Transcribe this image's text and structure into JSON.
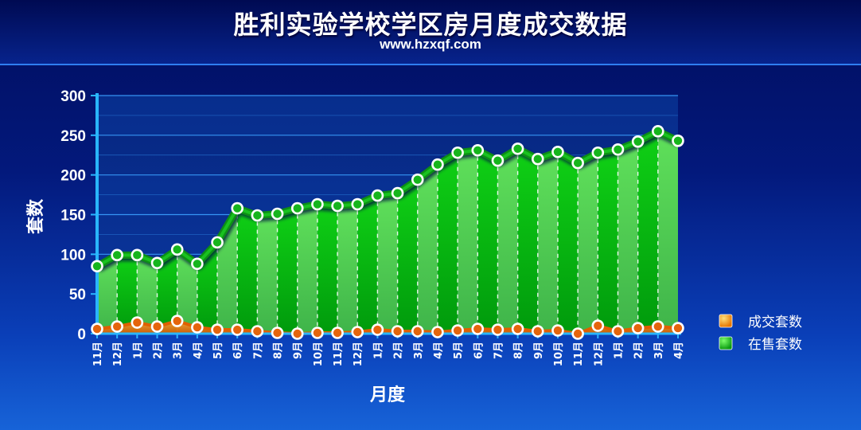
{
  "header": {
    "title": "胜利实验学校学区房月度成交数据",
    "subtitle": "www.hzxqf.com"
  },
  "colors": {
    "background": "#02106b",
    "sold_series": "#e86a10",
    "listed_series": "#12c41a",
    "grid": "#3aa0ff"
  },
  "chart_data": {
    "type": "area",
    "title": "胜利实验学校学区房月度成交数据",
    "subtitle": "www.hzxqf.com",
    "xlabel": "月度",
    "ylabel": "套数",
    "ylim": [
      0,
      300
    ],
    "yticks": [
      0,
      50,
      100,
      150,
      200,
      250,
      300
    ],
    "grid": true,
    "legend_position": "right",
    "categories": [
      "11月",
      "12月",
      "1月",
      "2月",
      "3月",
      "4月",
      "5月",
      "6月",
      "7月",
      "8月",
      "9月",
      "10月",
      "11月",
      "12月",
      "1月",
      "2月",
      "3月",
      "4月",
      "5月",
      "6月",
      "7月",
      "8月",
      "9月",
      "10月",
      "11月",
      "12月",
      "1月",
      "2月",
      "3月",
      "4月"
    ],
    "series": [
      {
        "name": "成交套数",
        "color": "#e86a10",
        "values": [
          6,
          9,
          14,
          9,
          16,
          8,
          5,
          5,
          3,
          1,
          0,
          1,
          1,
          2,
          5,
          3,
          3,
          2,
          4,
          6,
          5,
          6,
          3,
          4,
          0,
          10,
          3,
          7,
          9,
          7
        ]
      },
      {
        "name": "在售套数",
        "color": "#12c41a",
        "values": [
          85,
          99,
          99,
          89,
          106,
          88,
          115,
          158,
          149,
          151,
          158,
          163,
          161,
          163,
          174,
          177,
          194,
          213,
          228,
          231,
          218,
          233,
          220,
          229,
          215,
          228,
          232,
          242,
          255,
          243
        ]
      }
    ]
  }
}
